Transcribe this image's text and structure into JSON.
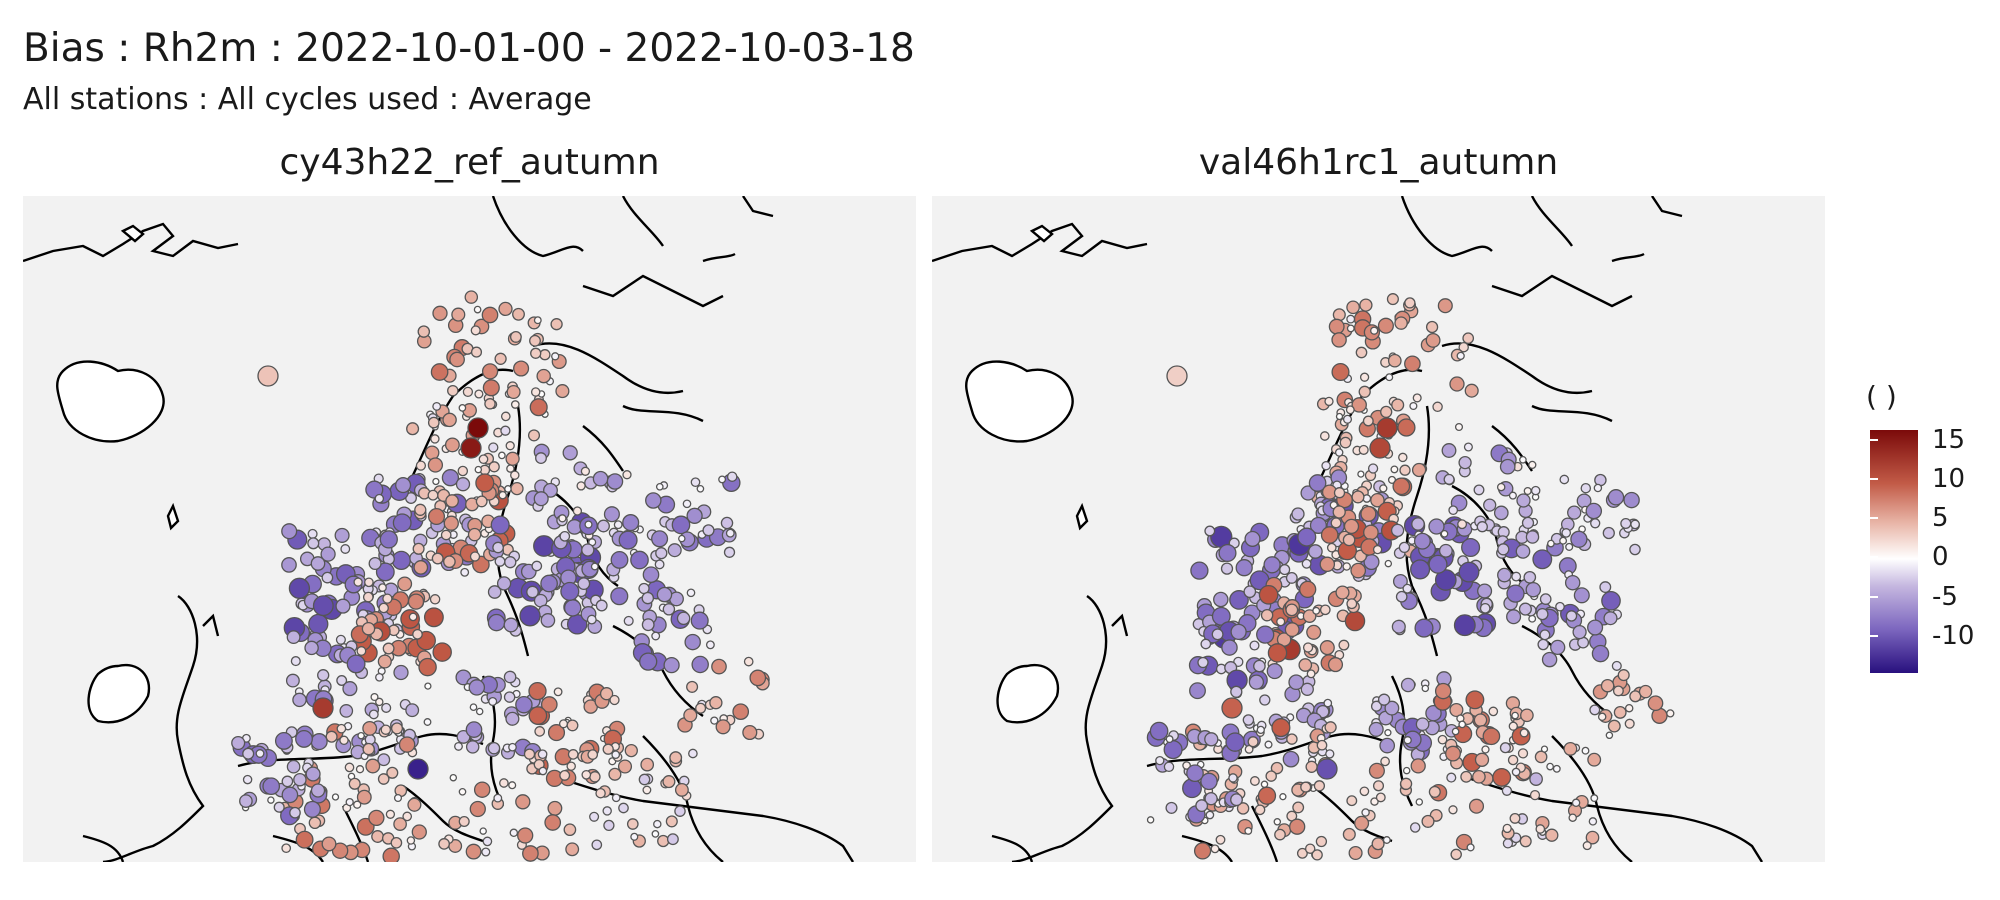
{
  "header": {
    "title": "Bias : Rh2m : 2022-10-01-00 - 2022-10-03-18",
    "subtitle": "All stations : All cycles used : Average"
  },
  "panels": [
    {
      "title": "cy43h22_ref_autumn"
    },
    {
      "title": "val46h1rc1_autumn"
    }
  ],
  "legend": {
    "title": "( )",
    "ticks": [
      "15",
      "10",
      "5",
      "0",
      "-5",
      "-10"
    ]
  },
  "colors": {
    "high": "#7b0a0a",
    "mid": "#ffffff",
    "low": "#28107e",
    "land": "#f2f2f2",
    "coast": "#000000"
  }
}
